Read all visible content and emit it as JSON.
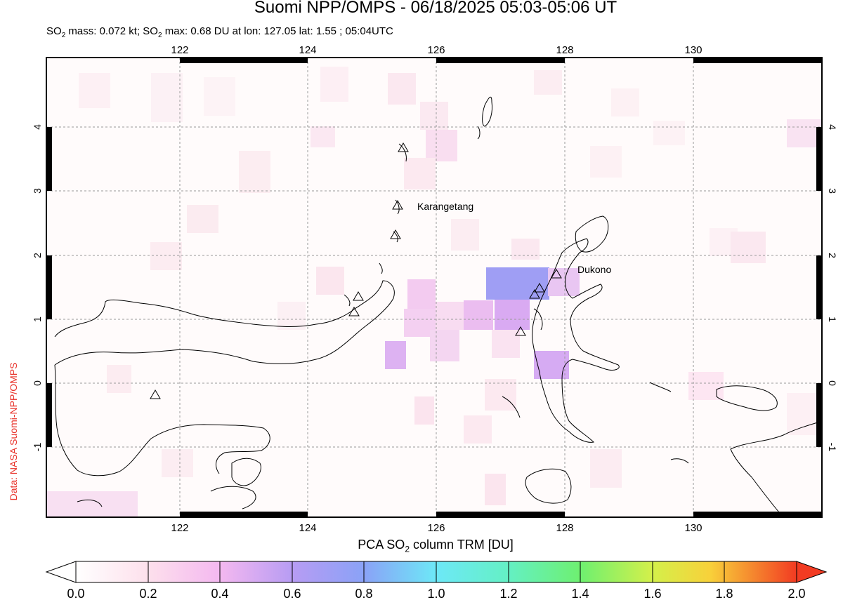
{
  "header": {
    "title": "Suomi NPP/OMPS - 06/18/2025 05:03-05:06 UT",
    "subtitle_pre": "SO",
    "subtitle_mid1": " mass: 0.072 kt; SO",
    "subtitle_rest": " max: 0.68 DU at lon: 127.05 lat: 1.55 ; 05:04UTC",
    "subscript": "2"
  },
  "credit": "Data: NASA Suomi-NPP/OMPS",
  "map": {
    "lon_ticks": [
      "122",
      "124",
      "126",
      "128",
      "130"
    ],
    "lat_ticks": [
      "4",
      "3",
      "2",
      "1",
      "0",
      "-1"
    ],
    "volcanoes": [
      {
        "name": "Karangetang",
        "label": "Karangetang"
      },
      {
        "name": "Dukono",
        "label": "Dukono"
      }
    ]
  },
  "colorbar": {
    "title_pre": "PCA SO",
    "title_sub": "2",
    "title_post": " column TRM [DU]",
    "ticks": [
      "0.0",
      "0.2",
      "0.4",
      "0.6",
      "0.8",
      "1.0",
      "1.2",
      "1.4",
      "1.6",
      "1.8",
      "2.0"
    ],
    "range": [
      0.0,
      2.0
    ]
  }
}
